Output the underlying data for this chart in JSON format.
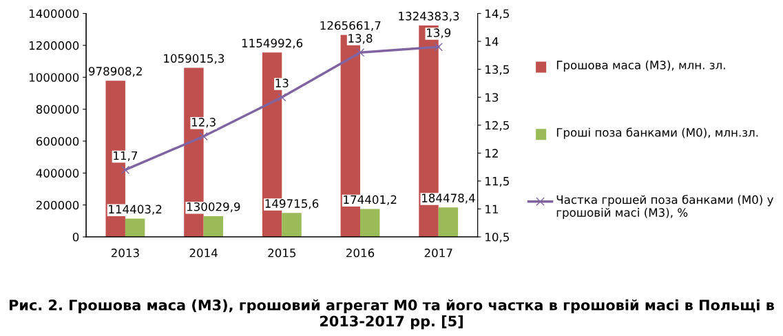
{
  "chart_data": {
    "type": "bar",
    "title": "Рис. 2. Грошова маса (М3), грошовий агрегат М0 та його частка в грошовій масі в Польщі в 2013-2017 рр. [5]",
    "categories": [
      "2013",
      "2014",
      "2015",
      "2016",
      "2017"
    ],
    "series": [
      {
        "name": "Грошова маса (М3), млн. зл.",
        "color": "#c0504d",
        "values": [
          978908.2,
          1059015.3,
          1154992.6,
          1265661.7,
          1324383.3
        ],
        "value_labels": [
          "978908,2",
          "1059015,3",
          "1154992,6",
          "1265661,7",
          "1324383,3"
        ]
      },
      {
        "name": "Гроші поза банками (М0), млн.зл.",
        "color": "#9bbb59",
        "values": [
          114403.2,
          130029.9,
          149715.6,
          174401.2,
          184478.4
        ],
        "value_labels": [
          "114403,2",
          "130029,9",
          "149715,6",
          "174401,2",
          "184478,4"
        ]
      },
      {
        "name": "Частка грошей поза банками (М0) у грошовій масі (М3), %",
        "type": "line",
        "axis": "y2",
        "color": "#8064a2",
        "marker": "cross",
        "values": [
          11.7,
          12.3,
          13,
          13.8,
          13.9
        ],
        "value_labels": [
          "11,7",
          "12,3",
          "13",
          "13,8",
          "13,9"
        ]
      }
    ],
    "ylim": [
      0,
      1400000
    ],
    "yticks": [
      0,
      200000,
      400000,
      600000,
      800000,
      1000000,
      1200000,
      1400000
    ],
    "y2lim": [
      10.5,
      14.5
    ],
    "y2ticks": [
      {
        "value": 10.5,
        "label": "10,5"
      },
      11,
      {
        "value": 11.5,
        "label": "11,5"
      },
      12,
      {
        "value": 12.5,
        "label": "12,5"
      },
      13,
      {
        "value": 13.5,
        "label": "13,5"
      },
      14,
      {
        "value": 14.5,
        "label": "14,5"
      }
    ],
    "grid": false,
    "legend": "right"
  }
}
